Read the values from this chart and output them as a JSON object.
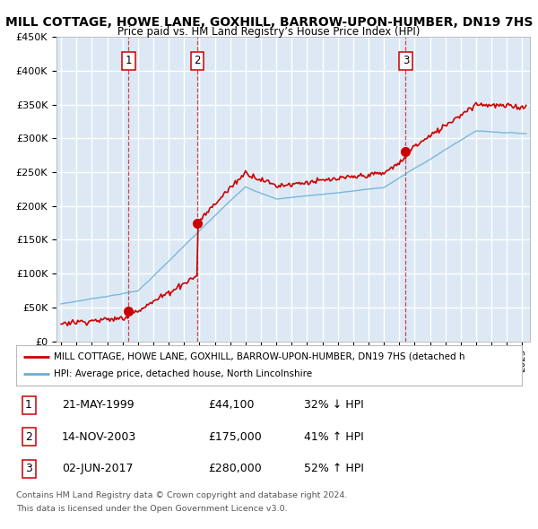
{
  "title": "MILL COTTAGE, HOWE LANE, GOXHILL, BARROW-UPON-HUMBER, DN19 7HS",
  "subtitle": "Price paid vs. HM Land Registry’s House Price Index (HPI)",
  "ylabel_ticks": [
    "£0",
    "£50K",
    "£100K",
    "£150K",
    "£200K",
    "£250K",
    "£300K",
    "£350K",
    "£400K",
    "£450K"
  ],
  "ytick_values": [
    0,
    50000,
    100000,
    150000,
    200000,
    250000,
    300000,
    350000,
    400000,
    450000
  ],
  "ylim": [
    0,
    450000
  ],
  "xlim_start": 1994.7,
  "xlim_end": 2025.5,
  "plot_bg_color": "#dce9f5",
  "grid_color": "#ffffff",
  "sale_points": [
    {
      "num": 1,
      "year": 1999.38,
      "price": 44100,
      "label": "21-MAY-1999",
      "amount": "£44,100",
      "pct": "32% ↓ HPI"
    },
    {
      "num": 2,
      "year": 2003.87,
      "price": 175000,
      "label": "14-NOV-2003",
      "amount": "£175,000",
      "pct": "41% ↑ HPI"
    },
    {
      "num": 3,
      "year": 2017.42,
      "price": 280000,
      "label": "02-JUN-2017",
      "amount": "£280,000",
      "pct": "52% ↑ HPI"
    }
  ],
  "legend_line1": "MILL COTTAGE, HOWE LANE, GOXHILL, BARROW-UPON-HUMBER, DN19 7HS (detached h",
  "legend_line2": "HPI: Average price, detached house, North Lincolnshire",
  "footer1": "Contains HM Land Registry data © Crown copyright and database right 2024.",
  "footer2": "This data is licensed under the Open Government Licence v3.0.",
  "red_color": "#cc0000",
  "blue_color": "#6aaed6",
  "num_box_edge": "#cc0000"
}
